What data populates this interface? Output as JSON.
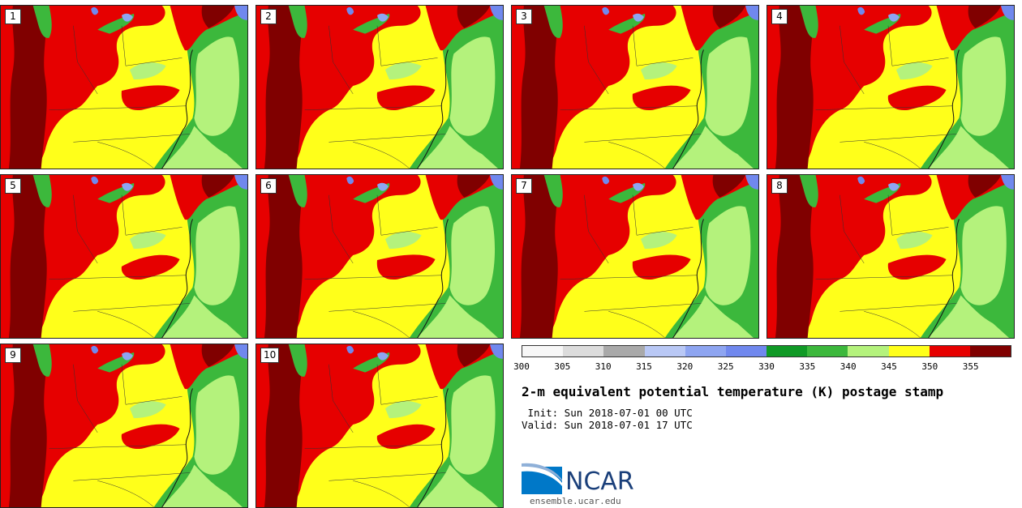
{
  "panels": [
    {
      "label": "1"
    },
    {
      "label": "2"
    },
    {
      "label": "3"
    },
    {
      "label": "4"
    },
    {
      "label": "5"
    },
    {
      "label": "6"
    },
    {
      "label": "7"
    },
    {
      "label": "8"
    },
    {
      "label": "9"
    },
    {
      "label": "10"
    }
  ],
  "colorbar": {
    "colors": [
      "#f7f7f7",
      "#dcdcdc",
      "#a9a9a9",
      "#b9c8f5",
      "#8ea5f1",
      "#7088ee",
      "#109a26",
      "#3cb83c",
      "#b4f27c",
      "#ffff1a",
      "#e60000",
      "#800000"
    ],
    "ticks": [
      "300",
      "305",
      "310",
      "315",
      "320",
      "325",
      "330",
      "335",
      "340",
      "345",
      "350",
      "355"
    ]
  },
  "title": "2-m equivalent potential temperature (K) postage stamp",
  "init": " Init: Sun 2018-07-01 00 UTC",
  "valid": "Valid: Sun 2018-07-01 17 UTC",
  "logo": {
    "text": "NCAR",
    "site": "ensemble.ucar.edu",
    "color": "#1a3f7a"
  }
}
